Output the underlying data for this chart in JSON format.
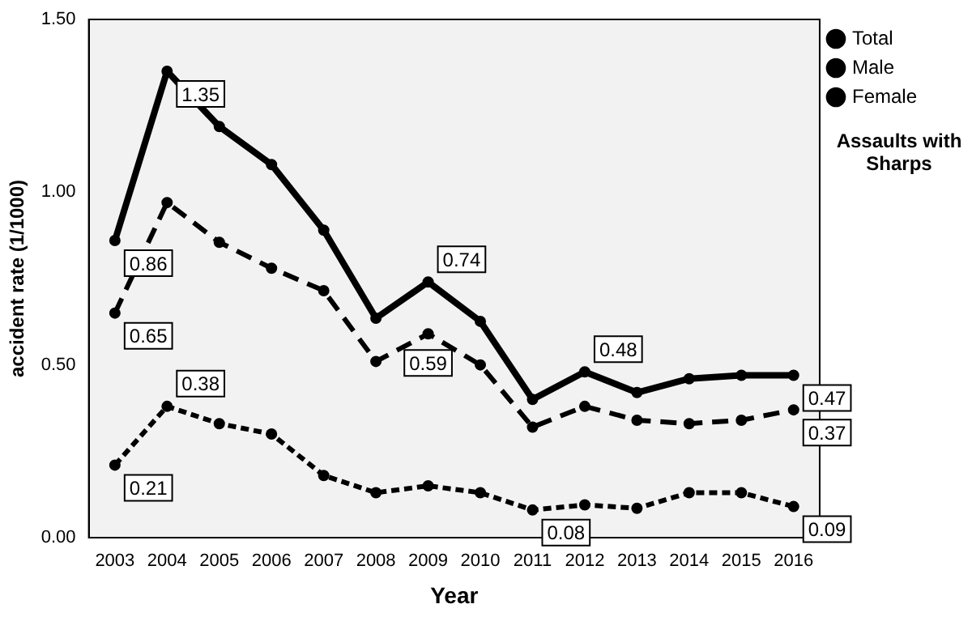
{
  "chart_data": {
    "type": "line",
    "title": "Assaults with Sharps",
    "xlabel": "Year",
    "ylabel": "accident rate (1/1000)",
    "categories": [
      "2003",
      "2004",
      "2005",
      "2006",
      "2007",
      "2008",
      "2009",
      "2010",
      "2011",
      "2012",
      "2013",
      "2014",
      "2015",
      "2016"
    ],
    "series": [
      {
        "name": "Total",
        "color": "#000000",
        "line_style": "solid",
        "values": [
          0.86,
          1.35,
          1.19,
          1.08,
          0.89,
          0.635,
          0.74,
          0.626,
          0.4,
          0.48,
          0.42,
          0.46,
          0.47,
          0.47
        ],
        "value_labels": [
          "0.86",
          "1.35",
          null,
          null,
          null,
          null,
          "0.74",
          null,
          null,
          "0.48",
          null,
          null,
          null,
          "0.47"
        ]
      },
      {
        "name": "Male",
        "color": "#000000",
        "line_style": "dashed",
        "values": [
          0.65,
          0.97,
          0.855,
          0.78,
          0.715,
          0.51,
          0.59,
          0.5,
          0.32,
          0.38,
          0.34,
          0.33,
          0.34,
          0.37
        ],
        "value_labels": [
          "0.65",
          null,
          null,
          null,
          null,
          null,
          "0.59",
          null,
          null,
          null,
          null,
          null,
          null,
          "0.37"
        ]
      },
      {
        "name": "Female",
        "color": "#000000",
        "line_style": "dotted",
        "values": [
          0.21,
          0.38,
          0.33,
          0.3,
          0.18,
          0.13,
          0.15,
          0.13,
          0.08,
          0.095,
          0.085,
          0.13,
          0.13,
          0.09
        ],
        "value_labels": [
          "0.21",
          "0.38",
          null,
          null,
          null,
          null,
          null,
          null,
          "0.08",
          null,
          null,
          null,
          null,
          "0.09"
        ]
      }
    ],
    "ylim": [
      0,
      1.5
    ],
    "yticks": [
      {
        "value": 0,
        "label": "0.00"
      },
      {
        "value": 0.5,
        "label": "0.50"
      },
      {
        "value": 1,
        "label": "1.00"
      },
      {
        "value": 1.5,
        "label": "1.50"
      }
    ],
    "grid": false,
    "legend": "top right",
    "marker": "circle"
  }
}
